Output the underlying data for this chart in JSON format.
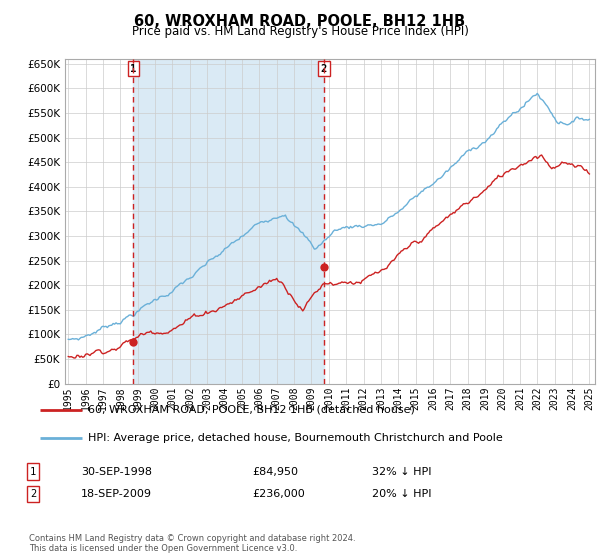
{
  "title": "60, WROXHAM ROAD, POOLE, BH12 1HB",
  "subtitle": "Price paid vs. HM Land Registry's House Price Index (HPI)",
  "legend_line1": "60, WROXHAM ROAD, POOLE, BH12 1HB (detached house)",
  "legend_line2": "HPI: Average price, detached house, Bournemouth Christchurch and Poole",
  "footnote": "Contains HM Land Registry data © Crown copyright and database right 2024.\nThis data is licensed under the Open Government Licence v3.0.",
  "sale1_label": "1",
  "sale1_date": "30-SEP-1998",
  "sale1_price": "£84,950",
  "sale1_hpi": "32% ↓ HPI",
  "sale1_year": 1998.75,
  "sale1_value": 84950,
  "sale2_label": "2",
  "sale2_date": "18-SEP-2009",
  "sale2_price": "£236,000",
  "sale2_hpi": "20% ↓ HPI",
  "sale2_year": 2009.72,
  "sale2_value": 236000,
  "hpi_color": "#6ab0d8",
  "hpi_fill_color": "#daeaf5",
  "price_color": "#cc2222",
  "marker_color": "#cc2222",
  "vline_color": "#cc2222",
  "grid_color": "#cccccc",
  "ylim_min": 0,
  "ylim_max": 660000,
  "ytick_step": 50000,
  "xmin": 1994.8,
  "xmax": 2025.3,
  "figwidth": 6.0,
  "figheight": 5.6,
  "dpi": 100
}
